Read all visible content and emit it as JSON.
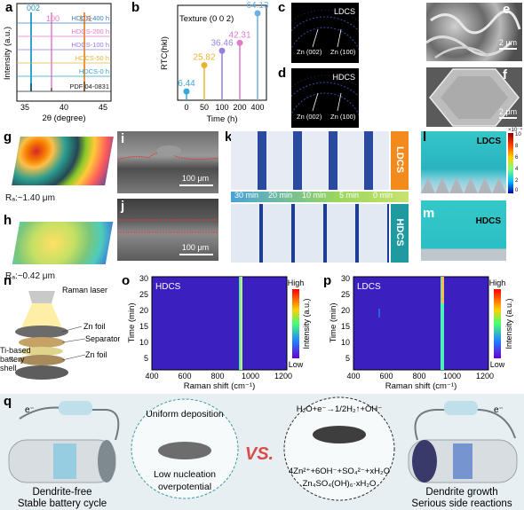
{
  "labels": {
    "a": "a",
    "b": "b",
    "c": "c",
    "d": "d",
    "e": "e",
    "f": "f",
    "g": "g",
    "h": "h",
    "i": "i",
    "j": "j",
    "k": "k",
    "l": "l",
    "m": "m",
    "n": "n",
    "o": "o",
    "p": "p",
    "q": "q"
  },
  "panel_a": {
    "xlabel": "2θ (degree)",
    "ylabel": "Intensity (a.u.)",
    "xticks": [
      "35",
      "40",
      "45"
    ],
    "peaks": [
      "002",
      "100",
      "101"
    ],
    "series": [
      "HDCS-400 h",
      "HDCS-200 h",
      "HDCS-100 h",
      "HDCS-50 h",
      "HDCS-0 h",
      "PDF 04-0831"
    ],
    "colors": [
      "#3a7ec6",
      "#e27ac8",
      "#9a7be0",
      "#e6b43a",
      "#33a3c9",
      "#222222"
    ]
  },
  "chart_data": {
    "type": "scatter",
    "title": "Texture (0 0 2)",
    "xlabel": "Time (h)",
    "ylabel": "RTC(hkl)",
    "x": [
      0,
      50,
      100,
      200,
      400
    ],
    "values": [
      6.44,
      25.82,
      36.46,
      42.31,
      64.13
    ],
    "value_labels": [
      "6.44",
      "25.82",
      "36.46",
      "42.31",
      "64.13"
    ],
    "xticks": [
      "0",
      "50",
      "100",
      "200",
      "400"
    ],
    "colors": [
      "#3aa7d9",
      "#e9b52f",
      "#9b7de2",
      "#e17ac9",
      "#6ab0e6"
    ]
  },
  "panel_c": {
    "tag": "LDCS",
    "l1": "Zn (002)",
    "l2": "Zn (100)"
  },
  "panel_d": {
    "tag": "HDCS",
    "l1": "Zn (002)",
    "l2": "Zn (100)"
  },
  "panel_e": {
    "scale": "2 μm"
  },
  "panel_f": {
    "scale": "2 μm"
  },
  "panel_g": {
    "ra": "Rₐ:~1.40 μm"
  },
  "panel_h": {
    "ra": "Rₐ:~0.42 μm"
  },
  "panel_i": {
    "scale": "100 μm"
  },
  "panel_j": {
    "scale": "100 μm"
  },
  "panel_k": {
    "times": [
      "30 min",
      "20 min",
      "10 min",
      "5 min",
      "0 min"
    ],
    "top": "LDCS",
    "bottom": "HDCS"
  },
  "panel_l": {
    "tag": "LDCS",
    "scale_top": "×10⁻⁴",
    "ticks": [
      "10",
      "8",
      "6",
      "4",
      "2",
      "0"
    ]
  },
  "panel_m": {
    "tag": "HDCS"
  },
  "panel_n": {
    "raman": "Raman laser",
    "znfoil1": "Zn foil",
    "separator": "Separator",
    "shell": "Ti-based battery shell",
    "znfoil2": "Zn foil"
  },
  "panel_o": {
    "tag": "HDCS",
    "xlabel": "Raman shift (cm⁻¹)",
    "ylabel": "Time (min)",
    "xticks": [
      "400",
      "600",
      "800",
      "1000",
      "1200"
    ],
    "yticks": [
      "30",
      "25",
      "20",
      "15",
      "10",
      "5"
    ],
    "cbar_high": "High",
    "cbar_low": "Low",
    "cbar_label": "Intensity (a.u.)"
  },
  "panel_p": {
    "tag": "LDCS",
    "xlabel": "Raman shift (cm⁻¹)",
    "ylabel": "Time (min)",
    "xticks": [
      "400",
      "600",
      "800",
      "1000",
      "1200"
    ],
    "yticks": [
      "30",
      "25",
      "20",
      "15",
      "10",
      "5"
    ],
    "cbar_high": "High",
    "cbar_low": "Low",
    "cbar_label": "Intensity (a.u.)"
  },
  "panel_q": {
    "e_left": "e⁻",
    "e_right": "e⁻",
    "uniform": "Uniform deposition",
    "low1": "Low nucleation",
    "low2": "overpotential",
    "vs": "VS.",
    "eq1": "H₂O+e⁻→1/2H₂↑+OH⁻",
    "eq2": "4Zn²⁺+6OH⁻+SO₄²⁻+xH₂O",
    "eq3": "Zn₄SO₄(OH)₆·xH₂O",
    "left1": "Dendrite-free",
    "left2": "Stable battery cycle",
    "right1": "Dendrite growth",
    "right2": "Serious side reactions"
  }
}
